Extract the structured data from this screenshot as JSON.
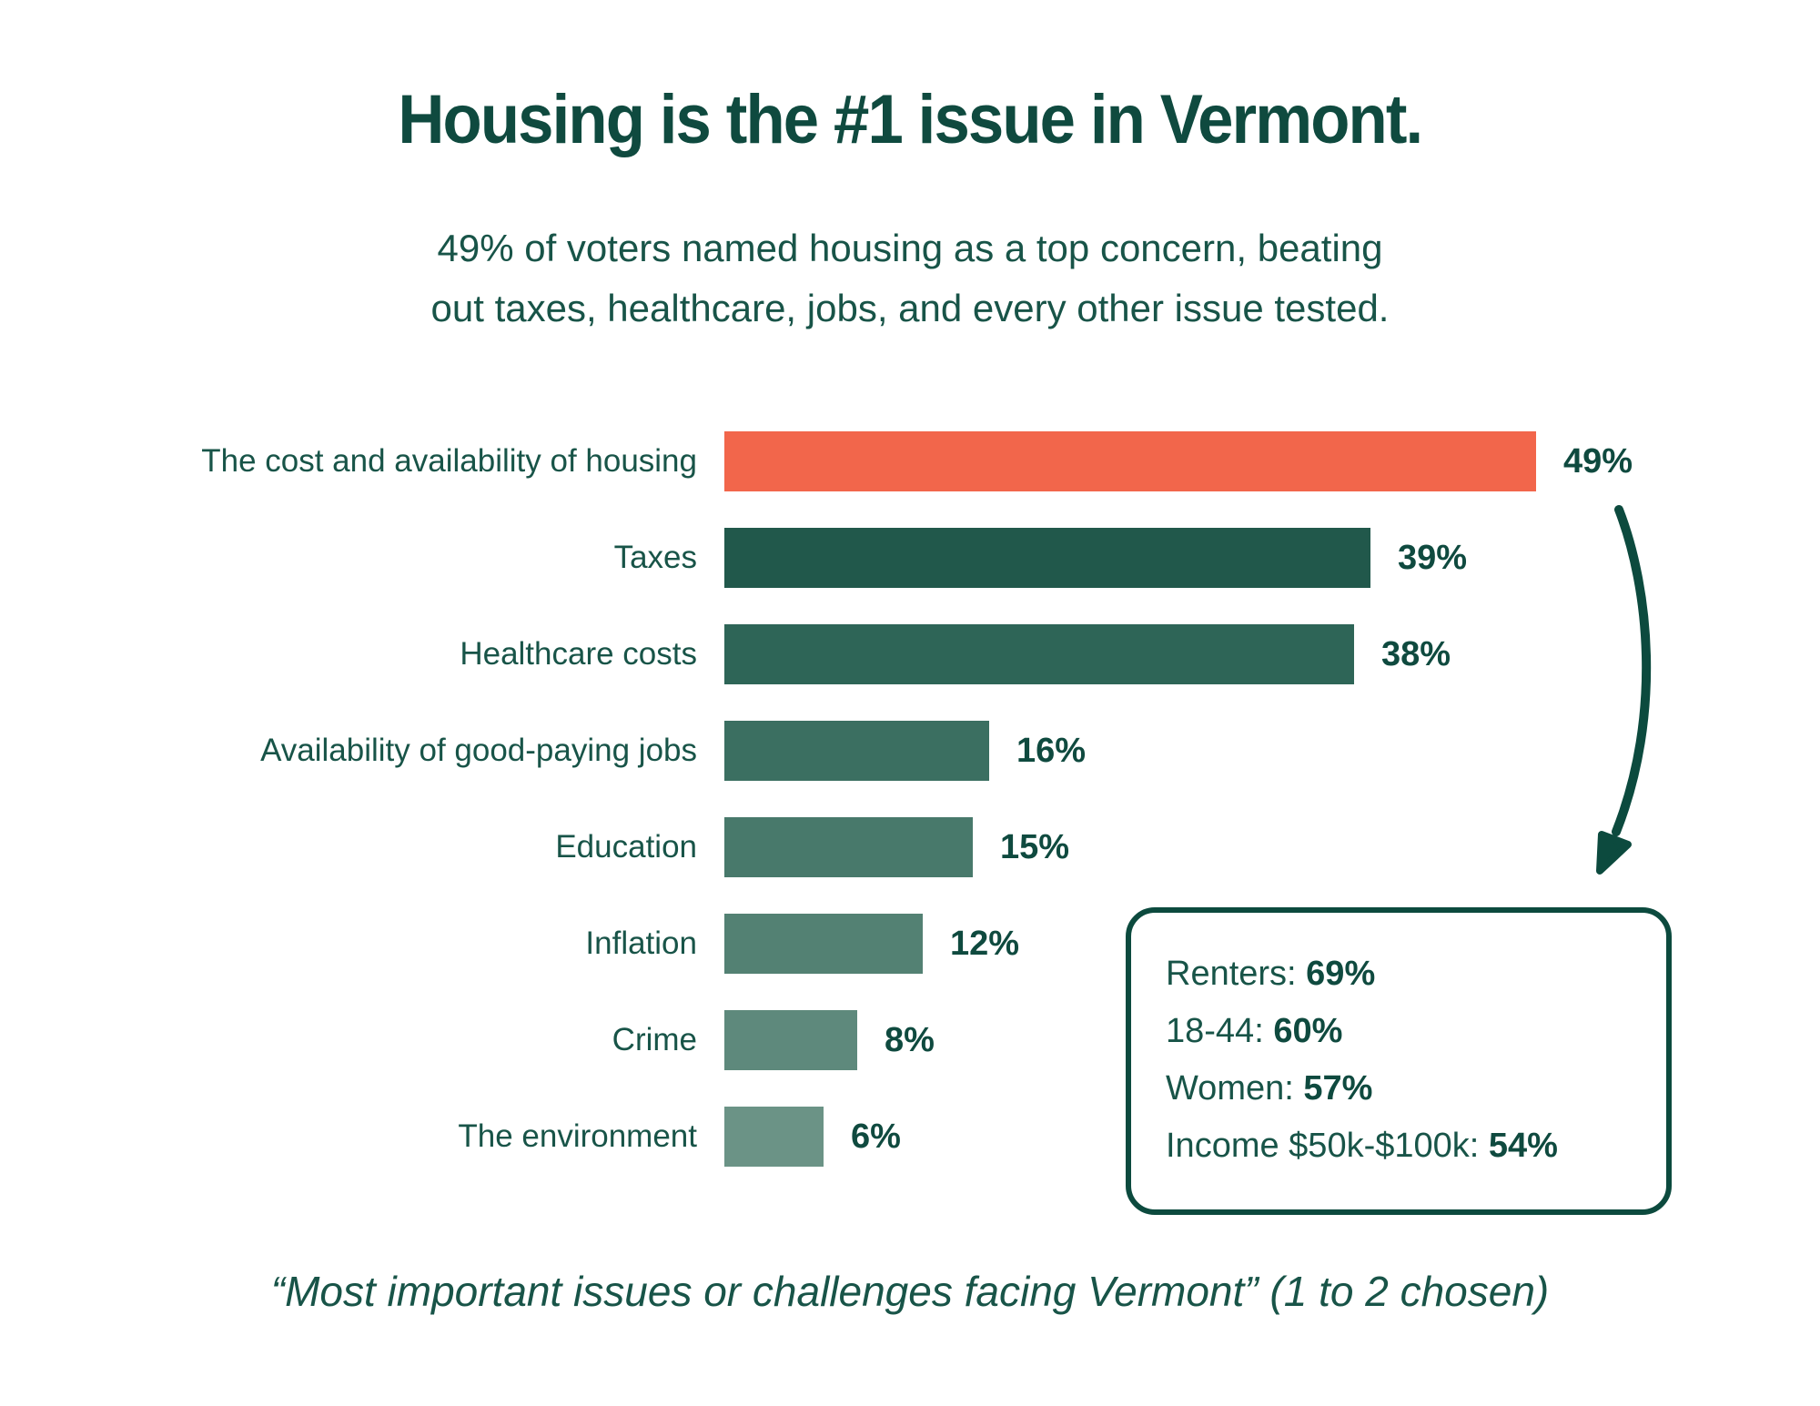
{
  "title": "Housing is the #1 issue in Vermont.",
  "subtitle_line1": "49% of voters named housing as a top concern, beating",
  "subtitle_line2": "out taxes, healthcare, jobs, and every other issue tested.",
  "chart_data": {
    "type": "bar",
    "orientation": "horizontal",
    "unit": "percent",
    "xlim": [
      0,
      55
    ],
    "grid": false,
    "legend": "none",
    "categories": [
      "The cost and availability of housing",
      "Taxes",
      "Healthcare costs",
      "Availability of good-paying jobs",
      "Education",
      "Inflation",
      "Crime",
      "The environment"
    ],
    "values": [
      49,
      39,
      38,
      16,
      15,
      12,
      8,
      6
    ],
    "value_labels": [
      "49%",
      "39%",
      "38%",
      "16%",
      "15%",
      "12%",
      "8%",
      "6%"
    ],
    "bar_colors": [
      "#f2664b",
      "#21584b",
      "#2e6557",
      "#3b6f61",
      "#48796b",
      "#538173",
      "#5e897c",
      "#6b9386"
    ],
    "highlight_color": "#f2664b",
    "annotation_arrow": "from 49% value label down to callout box"
  },
  "callout": {
    "items": [
      {
        "label": "Renters: ",
        "value": "69%"
      },
      {
        "label": "18-44: ",
        "value": "60%"
      },
      {
        "label": "Women: ",
        "value": "57%"
      },
      {
        "label": "Income $50k-$100k: ",
        "value": "54%"
      }
    ]
  },
  "footer": "“Most important issues or challenges facing Vermont” (1 to 2 chosen)",
  "colors": {
    "title_text": "#0f4a3f",
    "body_text": "#185448",
    "arrow_and_box": "#0c4a3e",
    "background": "#ffffff"
  }
}
